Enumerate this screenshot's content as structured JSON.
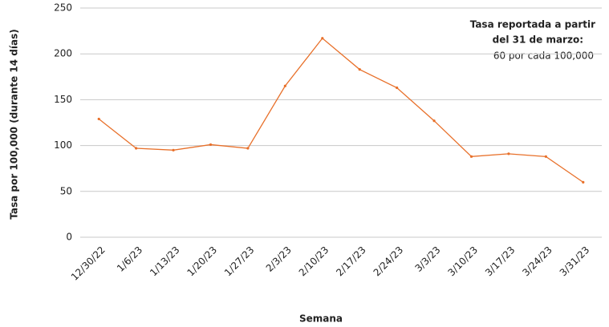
{
  "chart_data": {
    "type": "line",
    "y_label": "Tasa por 100,000 (durante 14 días)",
    "x_label": "Semana",
    "annotation": {
      "bold_lines": [
        "Tasa reportada a partir",
        "del 31 de marzo:"
      ],
      "text": "60 por cada 100,000"
    },
    "categories": [
      "12/30/22",
      "1/6/23",
      "1/13/23",
      "1/20/23",
      "1/27/23",
      "2/3/23",
      "2/10/23",
      "2/17/23",
      "2/24/23",
      "3/3/23",
      "3/10/23",
      "3/17/23",
      "3/24/23",
      "3/31/23"
    ],
    "values": [
      129,
      97,
      95,
      101,
      97,
      165,
      217,
      183,
      163,
      127,
      88,
      91,
      88,
      60
    ],
    "color": "#e8702a",
    "ylim": [
      0,
      250
    ],
    "yticks": [
      0,
      50,
      100,
      150,
      200,
      250
    ],
    "grid": true
  }
}
